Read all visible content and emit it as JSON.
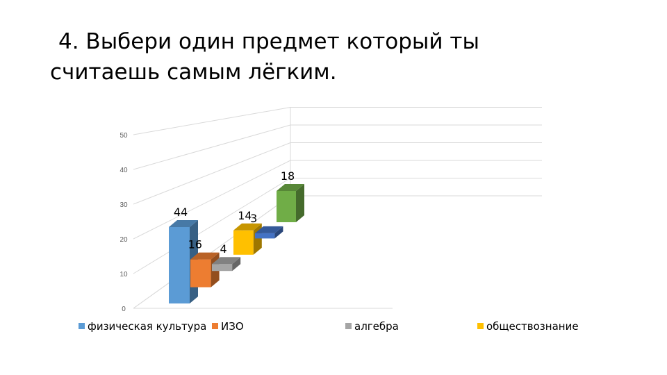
{
  "slide": {
    "title_line1": "4. Выбери один предмет который ты",
    "title_line2": "считаешь самым лёгким."
  },
  "chart_data": {
    "type": "bar",
    "style": "3d-clustered-column",
    "categories": [
      "физическая культура",
      "ИЗО",
      "алгебра",
      "обществознание",
      "",
      ""
    ],
    "values": [
      44,
      16,
      4,
      14,
      3,
      18
    ],
    "colors": [
      "#5b9bd5",
      "#ed7d31",
      "#a5a5a5",
      "#ffc000",
      "#4472c4",
      "#70ad47"
    ],
    "data_labels": [
      "44",
      "16",
      "4",
      "14",
      "3",
      "18"
    ],
    "y_ticks": [
      0,
      10,
      20,
      30,
      40,
      50
    ],
    "ylim": [
      0,
      50
    ],
    "grid": true,
    "legend_entries": [
      {
        "label": "физическая культура",
        "color": "#5b9bd5"
      },
      {
        "label": "ИЗО",
        "color": "#ed7d31"
      },
      {
        "label": "алгебра",
        "color": "#a5a5a5"
      },
      {
        "label": "обществознание",
        "color": "#ffc000"
      }
    ],
    "legend_position": "bottom"
  }
}
